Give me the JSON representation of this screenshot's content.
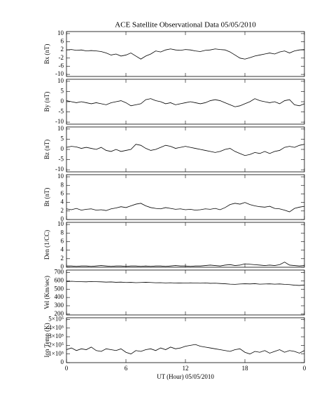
{
  "chart_data": [
    {
      "type": "line",
      "title": "ACE Satellite Observational Data   05/05/2010",
      "ylabel": "Bx (nT)",
      "color": "#000000",
      "x": [
        0,
        0.5,
        1,
        1.5,
        2,
        2.5,
        3,
        3.5,
        4,
        4.5,
        5,
        5.5,
        6,
        6.5,
        7,
        7.5,
        8,
        8.5,
        9,
        9.5,
        10,
        10.5,
        11,
        11.5,
        12,
        12.5,
        13,
        13.5,
        14,
        14.5,
        15,
        15.5,
        16,
        16.5,
        17,
        17.5,
        18,
        18.5,
        19,
        19.5,
        20,
        20.5,
        21,
        21.5,
        22,
        22.5,
        23,
        23.5,
        24
      ],
      "values": [
        2,
        2.2,
        1.8,
        2,
        1.5,
        1.7,
        1.5,
        1.2,
        0.5,
        -0.5,
        0,
        -1,
        -0.5,
        0.5,
        -1,
        -2.5,
        -1,
        0,
        1.5,
        1,
        2,
        2.5,
        2,
        1.8,
        2.2,
        2,
        1.5,
        1.2,
        1.8,
        2,
        2.5,
        2.2,
        2,
        1,
        -0.5,
        -2,
        -2.5,
        -1.8,
        -1,
        -0.5,
        0,
        0.5,
        0,
        1,
        1.5,
        0.5,
        1.5,
        2,
        2.2
      ],
      "xlim": [
        0,
        24
      ],
      "ylim": [
        -11,
        11
      ],
      "yticks": [
        10,
        6,
        2,
        -2,
        -6,
        -10
      ]
    },
    {
      "type": "line",
      "ylabel": "By (nT)",
      "color": "#000000",
      "x": [
        0,
        0.5,
        1,
        1.5,
        2,
        2.5,
        3,
        3.5,
        4,
        4.5,
        5,
        5.5,
        6,
        6.5,
        7,
        7.5,
        8,
        8.5,
        9,
        9.5,
        10,
        10.5,
        11,
        11.5,
        12,
        12.5,
        13,
        13.5,
        14,
        14.5,
        15,
        15.5,
        16,
        16.5,
        17,
        17.5,
        18,
        18.5,
        19,
        19.5,
        20,
        20.5,
        21,
        21.5,
        22,
        22.5,
        23,
        23.5,
        24
      ],
      "values": [
        0.5,
        0,
        -0.5,
        0,
        -0.5,
        -1,
        -0.5,
        -1,
        -1.5,
        -0.5,
        0,
        0.5,
        -0.5,
        -2,
        -1.5,
        -1,
        1,
        1.5,
        0.5,
        0,
        -1,
        -0.5,
        -1.5,
        -1,
        -0.5,
        0,
        -0.5,
        -1,
        -0.5,
        0.5,
        1,
        0.5,
        -0.5,
        -1.5,
        -2.5,
        -2,
        -1,
        0,
        1.5,
        0.5,
        0,
        -0.5,
        0,
        -1,
        0.5,
        1,
        -1.5,
        -2,
        -1
      ],
      "xlim": [
        0,
        24
      ],
      "ylim": [
        -11,
        11
      ],
      "yticks": [
        10,
        5,
        0,
        -5,
        -10
      ]
    },
    {
      "type": "line",
      "ylabel": "Bz (nT)",
      "color": "#000000",
      "x": [
        0,
        0.5,
        1,
        1.5,
        2,
        2.5,
        3,
        3.5,
        4,
        4.5,
        5,
        5.5,
        6,
        6.5,
        7,
        7.5,
        8,
        8.5,
        9,
        9.5,
        10,
        10.5,
        11,
        11.5,
        12,
        12.5,
        13,
        13.5,
        14,
        14.5,
        15,
        15.5,
        16,
        16.5,
        17,
        17.5,
        18,
        18.5,
        19,
        19.5,
        20,
        20.5,
        21,
        21.5,
        22,
        22.5,
        23,
        23.5,
        24
      ],
      "values": [
        1,
        1.5,
        1.2,
        0.5,
        1,
        0.5,
        0,
        1,
        -0.5,
        -1,
        0,
        -1,
        -0.5,
        0,
        2.5,
        2,
        0.5,
        -0.5,
        0,
        1,
        2,
        1.5,
        0.5,
        1,
        1.5,
        1,
        0.5,
        0,
        -0.5,
        -1,
        -1.5,
        -1,
        0,
        0.5,
        -1,
        -2,
        -3,
        -2.5,
        -1.5,
        -2,
        -1,
        -2,
        -1,
        -0.5,
        1,
        1.5,
        1,
        2,
        2.5
      ],
      "xlim": [
        0,
        24
      ],
      "ylim": [
        -11,
        11
      ],
      "yticks": [
        10,
        5,
        0,
        -5,
        -10
      ]
    },
    {
      "type": "line",
      "ylabel": "Bt (nT)",
      "color": "#000000",
      "x": [
        0,
        0.5,
        1,
        1.5,
        2,
        2.5,
        3,
        3.5,
        4,
        4.5,
        5,
        5.5,
        6,
        6.5,
        7,
        7.5,
        8,
        8.5,
        9,
        9.5,
        10,
        10.5,
        11,
        11.5,
        12,
        12.5,
        13,
        13.5,
        14,
        14.5,
        15,
        15.5,
        16,
        16.5,
        17,
        17.5,
        18,
        18.5,
        19,
        19.5,
        20,
        20.5,
        21,
        21.5,
        22,
        22.5,
        23,
        23.5,
        24
      ],
      "values": [
        2.5,
        2.3,
        2.6,
        2.2,
        2.4,
        2.5,
        2.2,
        2.3,
        2.1,
        2.5,
        2.7,
        3,
        2.8,
        3.2,
        3.6,
        3.8,
        3.2,
        2.8,
        2.6,
        2.5,
        2.8,
        2.6,
        2.4,
        2.5,
        2.3,
        2.4,
        2.2,
        2.3,
        2.5,
        2.4,
        2.6,
        2.3,
        2.8,
        3.5,
        3.8,
        3.6,
        4,
        3.5,
        3.2,
        3,
        2.9,
        3.1,
        2.6,
        2.5,
        2.2,
        1.8,
        2.6,
        2.9,
        3.1
      ],
      "xlim": [
        0,
        24
      ],
      "ylim": [
        0,
        10.5
      ],
      "yticks": [
        0,
        2,
        4,
        6,
        8,
        10
      ]
    },
    {
      "type": "line",
      "ylabel": "Den (1/CC)",
      "color": "#000000",
      "x": [
        0,
        0.5,
        1,
        1.5,
        2,
        2.5,
        3,
        3.5,
        4,
        4.5,
        5,
        5.5,
        6,
        6.5,
        7,
        7.5,
        8,
        8.5,
        9,
        9.5,
        10,
        10.5,
        11,
        11.5,
        12,
        12.5,
        13,
        13.5,
        14,
        14.5,
        15,
        15.5,
        16,
        16.5,
        17,
        17.5,
        18,
        18.5,
        19,
        19.5,
        20,
        20.5,
        21,
        21.5,
        22,
        22.5,
        23,
        23.5,
        24
      ],
      "values": [
        0.3,
        0.3,
        0.2,
        0.3,
        0.3,
        0.2,
        0.3,
        0.4,
        0.3,
        0.2,
        0.3,
        0.3,
        0.2,
        0.3,
        0.3,
        0.2,
        0.3,
        0.2,
        0.3,
        0.3,
        0.2,
        0.3,
        0.4,
        0.3,
        0.3,
        0.2,
        0.3,
        0.3,
        0.4,
        0.5,
        0.4,
        0.3,
        0.5,
        0.6,
        0.4,
        0.5,
        0.8,
        0.7,
        0.6,
        0.5,
        0.4,
        0.5,
        0.4,
        0.6,
        1.2,
        0.5,
        0.4,
        0.3,
        0.4
      ],
      "xlim": [
        0,
        24
      ],
      "ylim": [
        0,
        10.5
      ],
      "yticks": [
        0,
        2,
        4,
        6,
        8,
        10
      ]
    },
    {
      "type": "line",
      "ylabel": "Vel (Km/sec)",
      "color": "#000000",
      "x": [
        0,
        0.5,
        1,
        1.5,
        2,
        2.5,
        3,
        3.5,
        4,
        4.5,
        5,
        5.5,
        6,
        6.5,
        7,
        7.5,
        8,
        8.5,
        9,
        9.5,
        10,
        10.5,
        11,
        11.5,
        12,
        12.5,
        13,
        13.5,
        14,
        14.5,
        15,
        15.5,
        16,
        16.5,
        17,
        17.5,
        18,
        18.5,
        19,
        19.5,
        20,
        20.5,
        21,
        21.5,
        22,
        22.5,
        23,
        23.5,
        24
      ],
      "values": [
        590,
        595,
        592,
        590,
        588,
        592,
        590,
        588,
        585,
        587,
        583,
        585,
        580,
        582,
        578,
        580,
        583,
        580,
        577,
        578,
        575,
        577,
        574,
        575,
        573,
        576,
        574,
        572,
        575,
        570,
        572,
        568,
        565,
        560,
        558,
        562,
        565,
        563,
        566,
        560,
        562,
        564,
        560,
        563,
        558,
        555,
        548,
        545,
        550
      ],
      "xlim": [
        0,
        24
      ],
      "ylim": [
        190,
        730
      ],
      "yticks": [
        200,
        300,
        400,
        500,
        600,
        700
      ]
    },
    {
      "type": "line",
      "ylabel": "Ion Temp (K)",
      "xlabel": "UT (Hour)   05/05/2010",
      "color": "#000000",
      "x": [
        0,
        0.5,
        1,
        1.5,
        2,
        2.5,
        3,
        3.5,
        4,
        4.5,
        5,
        5.5,
        6,
        6.5,
        7,
        7.5,
        8,
        8.5,
        9,
        9.5,
        10,
        10.5,
        11,
        11.5,
        12,
        12.5,
        13,
        13.5,
        14,
        14.5,
        15,
        15.5,
        16,
        16.5,
        17,
        17.5,
        18,
        18.5,
        19,
        19.5,
        20,
        20.5,
        21,
        21.5,
        22,
        22.5,
        23,
        23.5,
        24
      ],
      "values": [
        150000,
        170000,
        140000,
        160000,
        150000,
        180000,
        140000,
        130000,
        160000,
        150000,
        140000,
        160000,
        120000,
        100000,
        140000,
        130000,
        150000,
        160000,
        140000,
        170000,
        150000,
        180000,
        160000,
        170000,
        190000,
        200000,
        210000,
        190000,
        180000,
        170000,
        160000,
        150000,
        140000,
        130000,
        150000,
        160000,
        120000,
        100000,
        130000,
        120000,
        140000,
        110000,
        130000,
        150000,
        120000,
        140000,
        130000,
        110000,
        140000
      ],
      "xlim": [
        0,
        24
      ],
      "ylim": [
        0,
        520000
      ],
      "yticks": [
        {
          "value": 0,
          "label": "0"
        },
        {
          "value": 100000,
          "label": "1×10⁵"
        },
        {
          "value": 200000,
          "label": "2×10⁵"
        },
        {
          "value": 300000,
          "label": "3×10⁵"
        },
        {
          "value": 400000,
          "label": "4×10⁵"
        },
        {
          "value": 500000,
          "label": "5×10⁵"
        }
      ],
      "xticks": [
        0,
        6,
        12,
        18,
        {
          "value": 24,
          "label": "0"
        }
      ]
    }
  ]
}
